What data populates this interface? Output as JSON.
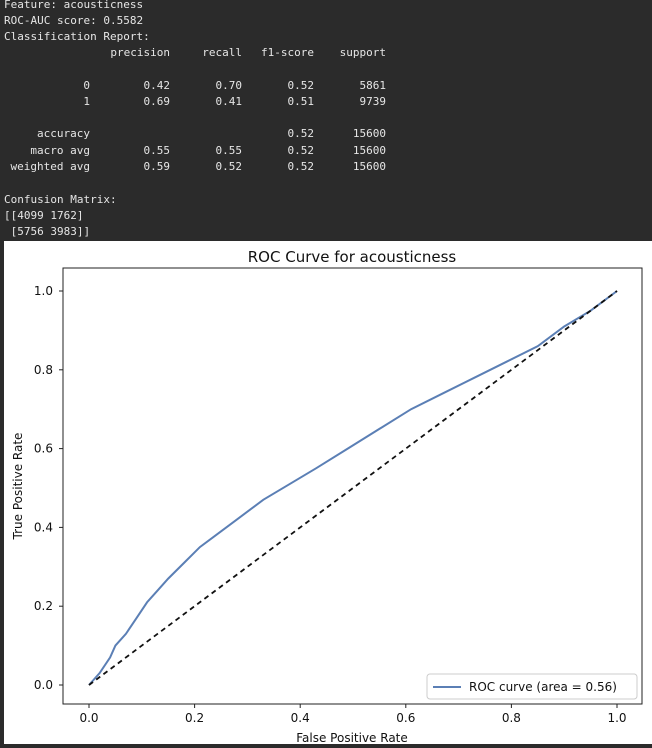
{
  "console": {
    "feature_line": "Feature: acousticness",
    "roc_auc_line": "ROC-AUC score: 0.5582",
    "report_title": "Classification Report:",
    "headers": [
      "precision",
      "recall",
      "f1-score",
      "support"
    ],
    "rows": [
      {
        "label": "0",
        "precision": "0.42",
        "recall": "0.70",
        "f1": "0.52",
        "support": "5861"
      },
      {
        "label": "1",
        "precision": "0.69",
        "recall": "0.41",
        "f1": "0.51",
        "support": "9739"
      },
      {
        "label": "accuracy",
        "precision": "",
        "recall": "",
        "f1": "0.52",
        "support": "15600"
      },
      {
        "label": "macro avg",
        "precision": "0.55",
        "recall": "0.55",
        "f1": "0.52",
        "support": "15600"
      },
      {
        "label": "weighted avg",
        "precision": "0.59",
        "recall": "0.52",
        "f1": "0.52",
        "support": "15600"
      }
    ],
    "confusion_title": "Confusion Matrix:",
    "confusion_line1": "[[4099 1762]",
    "confusion_line2": " [5756 3983]]"
  },
  "chart_data": {
    "type": "line",
    "title": "ROC Curve for acousticness",
    "xlabel": "False Positive Rate",
    "ylabel": "True Positive Rate",
    "xlim": [
      0.0,
      1.0
    ],
    "ylim": [
      0.0,
      1.0
    ],
    "x_ticks": [
      "0.0",
      "0.2",
      "0.4",
      "0.6",
      "0.8",
      "1.0"
    ],
    "y_ticks": [
      "0.0",
      "0.2",
      "0.4",
      "0.6",
      "0.8",
      "1.0"
    ],
    "legend": "lower right",
    "series": [
      {
        "name": "ROC curve (area = 0.56)",
        "color": "#5b7fb5",
        "x": [
          0.0,
          0.02,
          0.04,
          0.05,
          0.07,
          0.09,
          0.11,
          0.13,
          0.15,
          0.18,
          0.21,
          0.24,
          0.28,
          0.33,
          0.38,
          0.43,
          0.49,
          0.55,
          0.61,
          0.67,
          0.73,
          0.79,
          0.85,
          0.9,
          0.95,
          1.0
        ],
        "y": [
          0.0,
          0.03,
          0.07,
          0.1,
          0.13,
          0.17,
          0.21,
          0.24,
          0.27,
          0.31,
          0.35,
          0.38,
          0.42,
          0.47,
          0.51,
          0.55,
          0.6,
          0.65,
          0.7,
          0.74,
          0.78,
          0.82,
          0.86,
          0.91,
          0.95,
          1.0
        ]
      },
      {
        "name": "",
        "color": "#111111",
        "dashed": true,
        "x": [
          0.0,
          1.0
        ],
        "y": [
          0.0,
          1.0
        ]
      }
    ]
  }
}
